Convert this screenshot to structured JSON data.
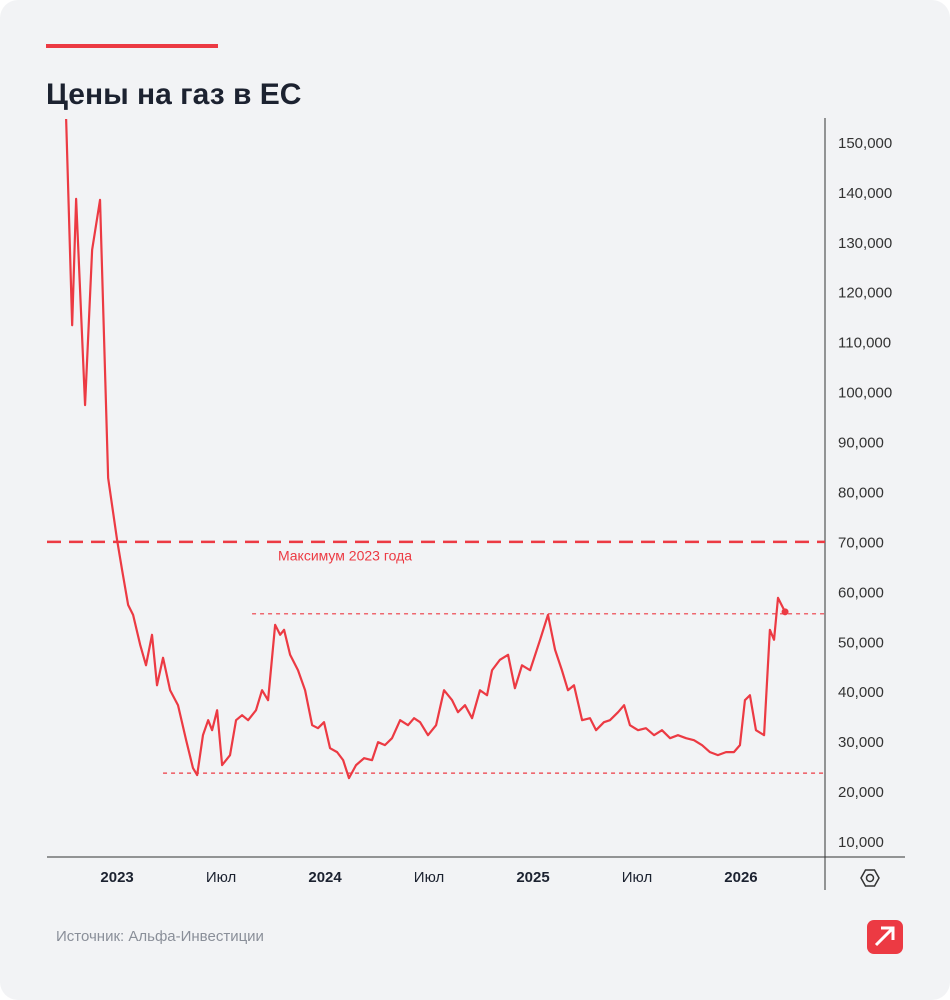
{
  "chart_data": {
    "type": "line",
    "title": "Цены на газ в ЕС",
    "source": "Источник: Альфа-Инвестиции",
    "color": "#ec3a43",
    "x": [
      2022.755,
      2022.784,
      2022.803,
      2022.846,
      2022.88,
      2022.918,
      2022.957,
      2023.0,
      2023.024,
      2023.053,
      2023.077,
      2023.111,
      2023.139,
      2023.168,
      2023.192,
      2023.221,
      2023.255,
      2023.293,
      2023.332,
      2023.365,
      2023.385,
      2023.413,
      2023.438,
      2023.457,
      2023.481,
      2023.505,
      2023.543,
      2023.572,
      2023.601,
      2023.63,
      2023.668,
      2023.697,
      2023.726,
      2023.76,
      2023.784,
      2023.803,
      2023.832,
      2023.87,
      2023.904,
      2023.938,
      2023.966,
      2023.995,
      2024.024,
      2024.058,
      2024.087,
      2024.115,
      2024.149,
      2024.188,
      2024.226,
      2024.255,
      2024.288,
      2024.322,
      2024.361,
      2024.399,
      2024.428,
      2024.457,
      2024.495,
      2024.534,
      2024.572,
      2024.611,
      2024.639,
      2024.673,
      2024.707,
      2024.745,
      2024.779,
      2024.803,
      2024.841,
      2024.88,
      2024.913,
      2024.947,
      2024.986,
      2025.034,
      2025.072,
      2025.106,
      2025.139,
      2025.168,
      2025.197,
      2025.236,
      2025.274,
      2025.303,
      2025.341,
      2025.37,
      2025.409,
      2025.438,
      2025.466,
      2025.505,
      2025.543,
      2025.582,
      2025.62,
      2025.659,
      2025.697,
      2025.736,
      2025.774,
      2025.813,
      2025.851,
      2025.889,
      2025.928,
      2025.966,
      2025.995,
      2026.019,
      2026.043,
      2026.072,
      2026.111,
      2026.139,
      2026.159,
      2026.178,
      2026.212
    ],
    "values": [
      155000,
      113700,
      139000,
      97700,
      128800,
      138800,
      83100,
      70700,
      64700,
      57700,
      55700,
      49700,
      45600,
      51700,
      41600,
      47100,
      40600,
      37600,
      30600,
      25000,
      23600,
      31600,
      34600,
      32600,
      36600,
      25600,
      27600,
      34600,
      35600,
      34600,
      36600,
      40600,
      38600,
      53700,
      51700,
      52700,
      47700,
      44600,
      40600,
      33600,
      33000,
      34200,
      29000,
      28200,
      26600,
      23000,
      25600,
      27000,
      26600,
      30200,
      29600,
      31000,
      34600,
      33600,
      35000,
      34200,
      31600,
      33600,
      40600,
      38600,
      36200,
      37600,
      35000,
      40600,
      39600,
      44600,
      46700,
      47700,
      41000,
      45600,
      44600,
      50700,
      55700,
      48700,
      44600,
      40600,
      41600,
      34600,
      35000,
      32600,
      34200,
      34600,
      36200,
      37600,
      33600,
      32600,
      33000,
      31600,
      32600,
      31000,
      31600,
      31000,
      30600,
      29600,
      28200,
      27600,
      28200,
      28200,
      29600,
      38600,
      39600,
      32600,
      31600,
      52700,
      50700,
      59100,
      56300
    ],
    "xlim": [
      2022.663,
      2026.404
    ],
    "xticks": [
      2023,
      {
        "value": 2023.5,
        "label": "Июл"
      },
      2024,
      {
        "value": 2024.5,
        "label": "Июл"
      },
      2025,
      {
        "value": 2025.5,
        "label": "Июл"
      },
      2026
    ],
    "ylim": [
      7200,
      155200
    ],
    "yticks": [
      {
        "value": 10000,
        "label": "10,000"
      },
      {
        "value": 20000,
        "label": "20,000"
      },
      {
        "value": 30000,
        "label": "30,000"
      },
      {
        "value": 40000,
        "label": "40,000"
      },
      {
        "value": 50000,
        "label": "50,000"
      },
      {
        "value": 60000,
        "label": "60,000"
      },
      {
        "value": 70000,
        "label": "70,000"
      },
      {
        "value": 80000,
        "label": "80,000"
      },
      {
        "value": 90000,
        "label": "90,000"
      },
      {
        "value": 100000,
        "label": "100,000"
      },
      {
        "value": 110000,
        "label": "110,000"
      },
      {
        "value": 120000,
        "label": "120,000"
      },
      {
        "value": 130000,
        "label": "130,000"
      },
      {
        "value": 140000,
        "label": "140,000"
      },
      {
        "value": 150000,
        "label": "150,000"
      }
    ],
    "grid": false,
    "reference_lines": [
      {
        "value": 70300,
        "label": "Максимум 2023 года",
        "style": "dashed",
        "x_start": 2022.663
      },
      {
        "value": 55900,
        "style": "dotted",
        "x_start": 2023.649
      },
      {
        "value": 24000,
        "style": "dotted",
        "x_start": 2023.221
      }
    ]
  }
}
